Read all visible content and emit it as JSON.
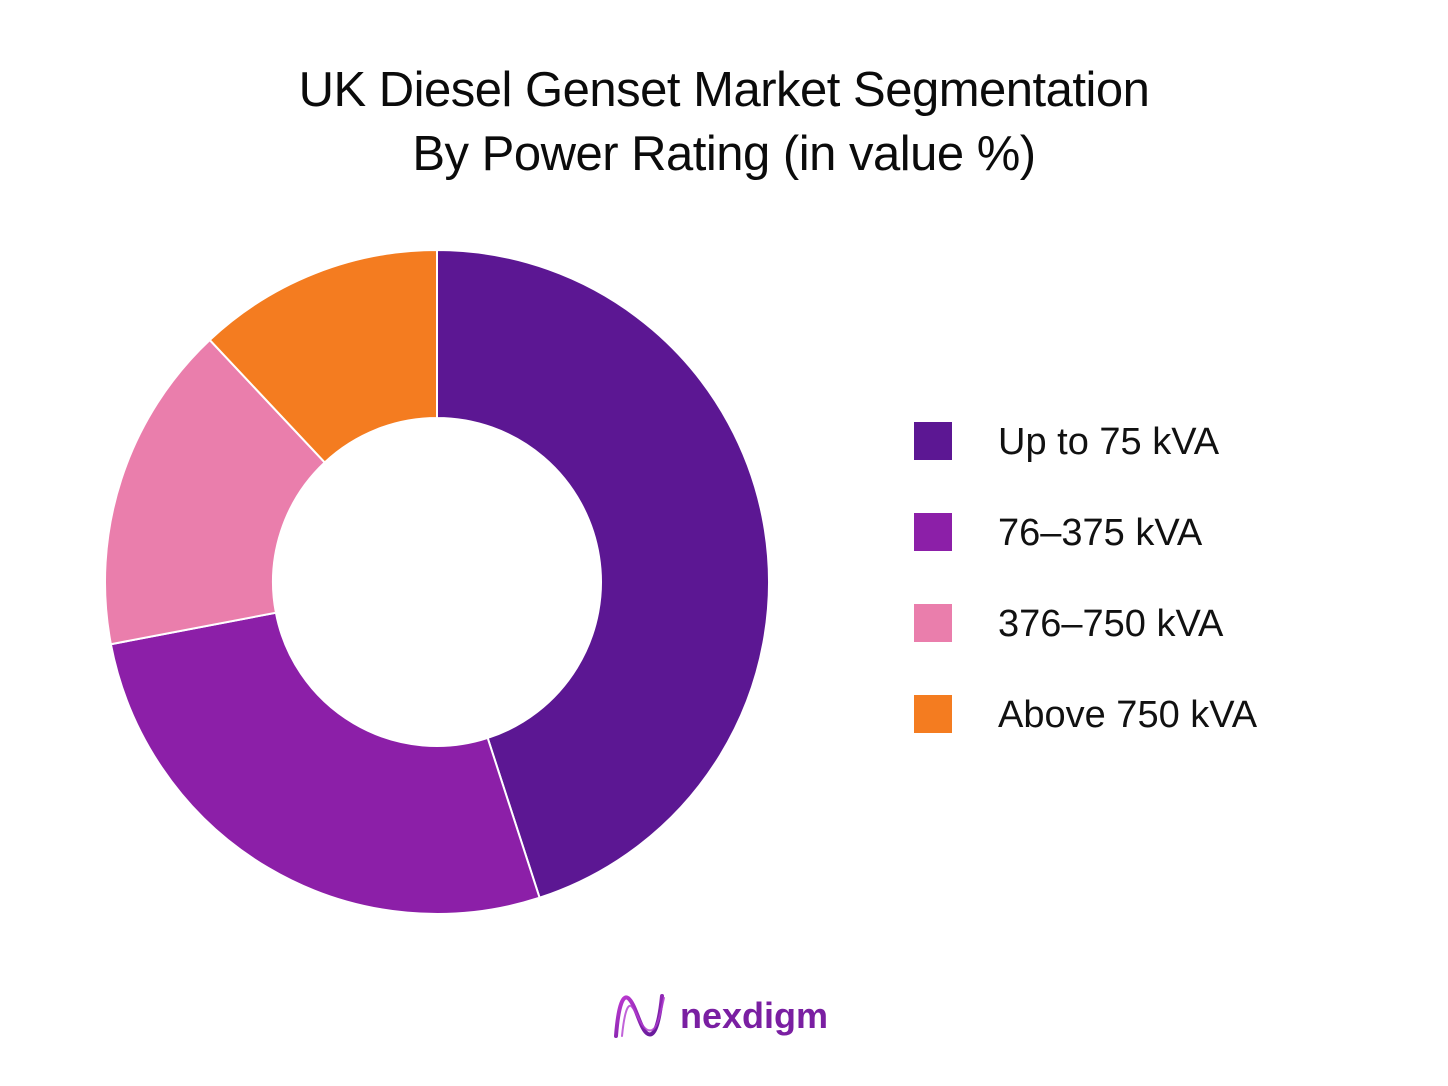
{
  "chart_data": {
    "type": "pie",
    "donut": true,
    "title_lines": [
      "UK Diesel Genset Market Segmentation",
      "By Power Rating (in value %)"
    ],
    "categories": [
      "Up to 75 kVA",
      "76–375 kVA",
      "376–750 kVA",
      "Above 750 kVA"
    ],
    "values": [
      45,
      27,
      16,
      12
    ],
    "unit": "%",
    "colors": [
      "#5c1793",
      "#8c1fa8",
      "#ea7eac",
      "#f47c20"
    ],
    "legend_position": "right",
    "start_angle": "top",
    "direction": "clockwise"
  },
  "brand": {
    "name": "nexdigm",
    "icon": "nexdigm-logo-icon",
    "color": "#7a1fa2"
  }
}
